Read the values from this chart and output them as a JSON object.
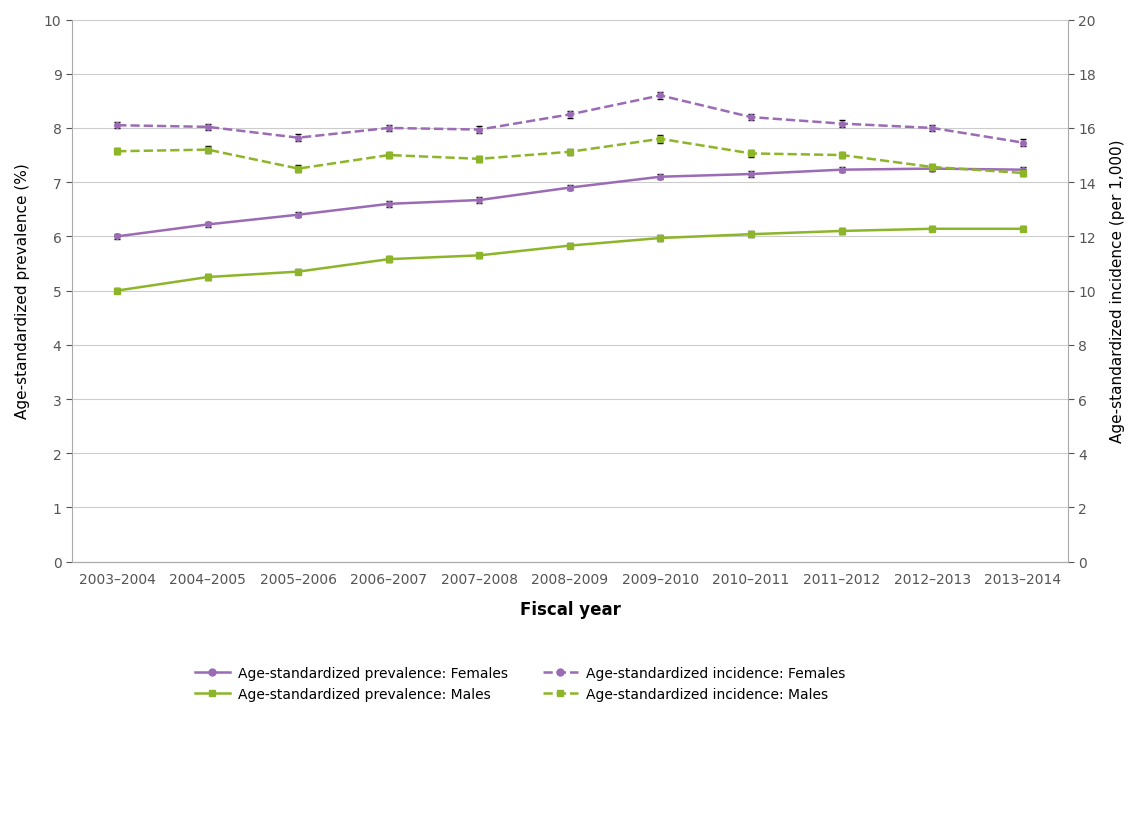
{
  "years": [
    "2003–2004",
    "2004–2005",
    "2005–2006",
    "2006–2007",
    "2007–2008",
    "2008–2009",
    "2009–2010",
    "2010–2011",
    "2011–2012",
    "2012–2013",
    "2013–2014"
  ],
  "prev_females": [
    6.0,
    6.22,
    6.4,
    6.6,
    6.67,
    6.9,
    7.1,
    7.15,
    7.23,
    7.25,
    7.23
  ],
  "prev_females_err": [
    0.05,
    0.05,
    0.05,
    0.05,
    0.05,
    0.05,
    0.05,
    0.05,
    0.05,
    0.05,
    0.05
  ],
  "prev_males": [
    5.0,
    5.25,
    5.35,
    5.58,
    5.65,
    5.83,
    5.97,
    6.04,
    6.1,
    6.14,
    6.14
  ],
  "prev_males_err": [
    0.05,
    0.05,
    0.05,
    0.05,
    0.05,
    0.05,
    0.05,
    0.05,
    0.05,
    0.05,
    0.05
  ],
  "inc_females": [
    16.1,
    16.04,
    15.64,
    16.0,
    15.94,
    16.5,
    17.2,
    16.4,
    16.16,
    16.0,
    15.46
  ],
  "inc_females_err": [
    0.12,
    0.12,
    0.12,
    0.12,
    0.12,
    0.12,
    0.14,
    0.12,
    0.12,
    0.12,
    0.12
  ],
  "inc_males": [
    15.14,
    15.2,
    14.5,
    15.0,
    14.86,
    15.12,
    15.6,
    15.06,
    15.0,
    14.56,
    14.34
  ],
  "inc_males_err": [
    0.12,
    0.12,
    0.12,
    0.12,
    0.12,
    0.12,
    0.14,
    0.12,
    0.12,
    0.12,
    0.12
  ],
  "color_purple": "#9b6bb5",
  "color_green": "#8db52a",
  "xlabel": "Fiscal year",
  "ylabel_left": "Age-standardized prevalence (%)",
  "ylabel_right": "Age-standardized incidence (per 1,000)",
  "ylim_left": [
    0,
    10
  ],
  "ylim_right": [
    0,
    20
  ],
  "yticks_left": [
    0,
    1,
    2,
    3,
    4,
    5,
    6,
    7,
    8,
    9,
    10
  ],
  "yticks_right": [
    0,
    2,
    4,
    6,
    8,
    10,
    12,
    14,
    16,
    18,
    20
  ],
  "legend_labels": [
    "Age-standardized prevalence: Females",
    "Age-standardized prevalence: Males",
    "Age-standardized incidence: Females",
    "Age-standardized incidence: Males"
  ]
}
